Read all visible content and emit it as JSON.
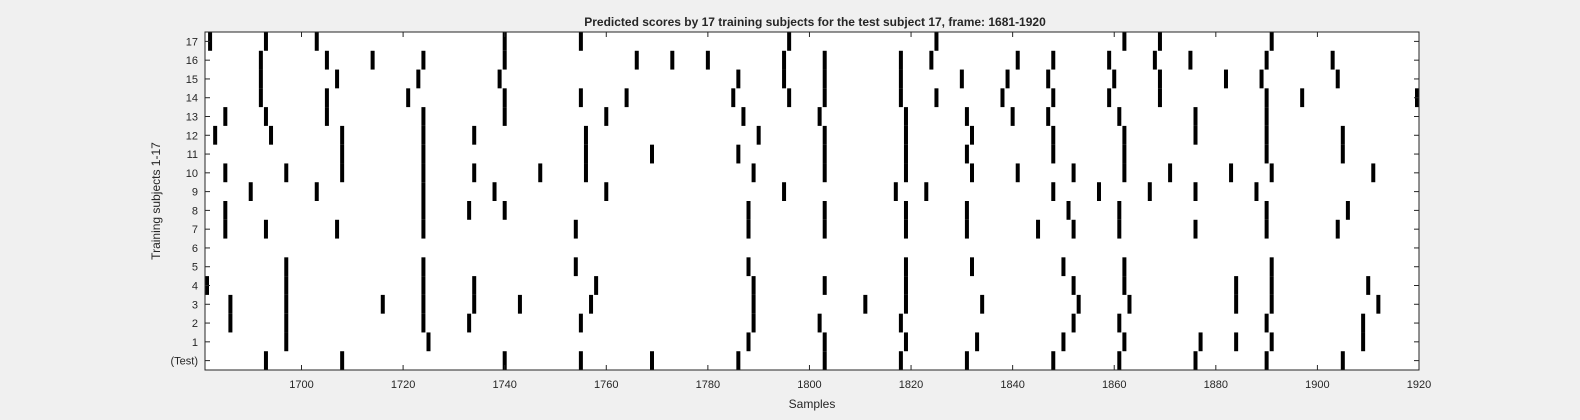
{
  "chart_data": {
    "type": "raster",
    "title": "Predicted scores by 17 training subjects for the test subject 17, frame: 1681-1920",
    "xlabel": "Samples",
    "ylabel": "Training subjects 1-17",
    "xlim": [
      1681,
      1920
    ],
    "xticks": [
      1700,
      1720,
      1740,
      1760,
      1780,
      1800,
      1820,
      1840,
      1860,
      1880,
      1900,
      1920
    ],
    "ytick_labels": [
      "(Test)",
      "1",
      "2",
      "3",
      "4",
      "5",
      "6",
      "7",
      "8",
      "9",
      "10",
      "11",
      "12",
      "13",
      "14",
      "15",
      "16",
      "17"
    ],
    "mark_color": "#000000",
    "plot_background": "#ffffff",
    "figure_background": "#f0f0f0",
    "rows": [
      {
        "label": "(Test)",
        "x": [
          1693,
          1708,
          1740,
          1755,
          1769,
          1786,
          1803,
          1818,
          1831,
          1848,
          1861,
          1876,
          1890,
          1905
        ]
      },
      {
        "label": "1",
        "x": [
          1697,
          1725,
          1788,
          1803,
          1819,
          1833,
          1850,
          1862,
          1877,
          1884,
          1891,
          1909
        ]
      },
      {
        "label": "2",
        "x": [
          1686,
          1697,
          1724,
          1733,
          1755,
          1789,
          1802,
          1818,
          1852,
          1861,
          1890,
          1909
        ]
      },
      {
        "label": "3",
        "x": [
          1686,
          1697,
          1716,
          1724,
          1734,
          1743,
          1757,
          1789,
          1811,
          1819,
          1834,
          1853,
          1863,
          1884,
          1891,
          1912
        ]
      },
      {
        "label": "4",
        "x": [
          1681,
          1697,
          1724,
          1734,
          1758,
          1789,
          1803,
          1819,
          1852,
          1862,
          1884,
          1891,
          1910
        ]
      },
      {
        "label": "5",
        "x": [
          1697,
          1724,
          1754,
          1788,
          1819,
          1832,
          1850,
          1862,
          1891
        ]
      },
      {
        "label": "6",
        "x": []
      },
      {
        "label": "7",
        "x": [
          1685,
          1693,
          1707,
          1724,
          1754,
          1788,
          1803,
          1819,
          1831,
          1845,
          1852,
          1861,
          1876,
          1890,
          1904
        ]
      },
      {
        "label": "8",
        "x": [
          1685,
          1724,
          1733,
          1740,
          1788,
          1803,
          1819,
          1831,
          1851,
          1861,
          1890,
          1906
        ]
      },
      {
        "label": "9",
        "x": [
          1690,
          1703,
          1724,
          1738,
          1760,
          1795,
          1817,
          1823,
          1848,
          1857,
          1867,
          1876,
          1888
        ]
      },
      {
        "label": "10",
        "x": [
          1685,
          1697,
          1708,
          1724,
          1734,
          1747,
          1756,
          1789,
          1803,
          1819,
          1832,
          1841,
          1852,
          1862,
          1871,
          1883,
          1891,
          1911
        ]
      },
      {
        "label": "11",
        "x": [
          1708,
          1724,
          1756,
          1769,
          1786,
          1803,
          1819,
          1831,
          1848,
          1862,
          1890,
          1905
        ]
      },
      {
        "label": "12",
        "x": [
          1683,
          1694,
          1708,
          1724,
          1734,
          1756,
          1790,
          1803,
          1819,
          1832,
          1848,
          1862,
          1876,
          1890,
          1905
        ]
      },
      {
        "label": "13",
        "x": [
          1685,
          1693,
          1705,
          1724,
          1740,
          1760,
          1787,
          1802,
          1819,
          1831,
          1840,
          1847,
          1861,
          1876,
          1890
        ]
      },
      {
        "label": "14",
        "x": [
          1692,
          1705,
          1721,
          1740,
          1755,
          1764,
          1785,
          1796,
          1803,
          1818,
          1825,
          1838,
          1848,
          1859,
          1869,
          1890,
          1897,
          1920
        ]
      },
      {
        "label": "15",
        "x": [
          1692,
          1707,
          1723,
          1739,
          1786,
          1795,
          1803,
          1818,
          1830,
          1839,
          1847,
          1860,
          1869,
          1882,
          1889,
          1904
        ]
      },
      {
        "label": "16",
        "x": [
          1692,
          1705,
          1714,
          1724,
          1740,
          1766,
          1773,
          1780,
          1795,
          1803,
          1818,
          1824,
          1841,
          1848,
          1859,
          1868,
          1875,
          1890,
          1903
        ]
      },
      {
        "label": "17",
        "x": [
          1682,
          1693,
          1703,
          1740,
          1755,
          1796,
          1825,
          1862,
          1869,
          1891
        ]
      }
    ]
  }
}
